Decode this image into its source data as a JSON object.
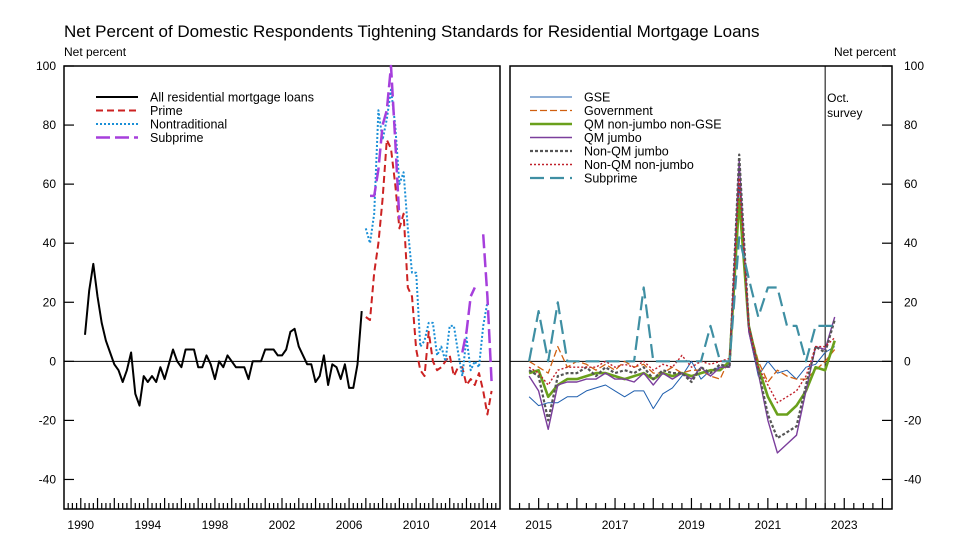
{
  "title": "Net Percent of Domestic Respondents Tightening Standards for Residential Mortgage Loans",
  "chart_data": [
    {
      "type": "line",
      "panel": "left",
      "ylabel": "Net percent",
      "ylim": [
        -50,
        100
      ],
      "y_ticks": [
        -40,
        -20,
        0,
        20,
        40,
        60,
        80,
        100
      ],
      "xlim": [
        1989.0,
        2015.0
      ],
      "x_ticks": [
        1990,
        1994,
        1998,
        2002,
        2006,
        2010,
        2014
      ],
      "zero_line": true,
      "legend": "top-left",
      "series": [
        {
          "name": "All residential mortgage loans",
          "color": "#000000",
          "dash": "",
          "width": 2,
          "x": [
            1990.25,
            1990.5,
            1990.75,
            1991,
            1991.25,
            1991.5,
            1991.75,
            1992,
            1992.25,
            1992.5,
            1992.75,
            1993,
            1993.25,
            1993.5,
            1993.75,
            1994,
            1994.25,
            1994.5,
            1994.75,
            1995,
            1995.25,
            1995.5,
            1995.75,
            1996,
            1996.25,
            1996.5,
            1996.75,
            1997,
            1997.25,
            1997.5,
            1997.75,
            1998,
            1998.25,
            1998.5,
            1998.75,
            1999,
            1999.25,
            1999.5,
            1999.75,
            2000,
            2000.25,
            2000.5,
            2000.75,
            2001,
            2001.25,
            2001.5,
            2001.75,
            2002,
            2002.25,
            2002.5,
            2002.75,
            2003,
            2003.25,
            2003.5,
            2003.75,
            2004,
            2004.25,
            2004.5,
            2004.75,
            2005,
            2005.25,
            2005.5,
            2005.75,
            2006,
            2006.25,
            2006.5,
            2006.75
          ],
          "y": [
            9,
            24,
            33,
            22,
            13,
            7,
            3,
            -1,
            -3,
            -7,
            -3,
            3,
            -11,
            -15,
            -5,
            -7,
            -5,
            -7,
            -2,
            -6,
            -1,
            4,
            0,
            -2,
            4,
            4,
            4,
            -2,
            -2,
            2,
            -1,
            -6,
            0,
            -2,
            2,
            0,
            -2,
            -2,
            -2,
            -6,
            0,
            0,
            0,
            4,
            4,
            4,
            2,
            2,
            4,
            10,
            11,
            5,
            2,
            -1,
            -1,
            -7,
            -5,
            2,
            -8,
            -1,
            -2,
            -6,
            -1,
            -9,
            -9,
            -1,
            17
          ]
        },
        {
          "name": "Prime",
          "color": "#cc2222",
          "dash": "7,4",
          "width": 2,
          "x": [
            2007,
            2007.25,
            2007.5,
            2007.75,
            2008,
            2008.25,
            2008.5,
            2008.75,
            2009,
            2009.25,
            2009.5,
            2009.75,
            2010,
            2010.25,
            2010.5,
            2010.75,
            2011,
            2011.25,
            2011.5,
            2011.75,
            2012,
            2012.25,
            2012.5,
            2012.75,
            2013,
            2013.25,
            2013.5,
            2013.75,
            2014,
            2014.25,
            2014.5
          ],
          "y": [
            15,
            14,
            30,
            40,
            55,
            75,
            72,
            60,
            45,
            50,
            25,
            22,
            4,
            -3,
            -5,
            10,
            0,
            -3,
            -2,
            0,
            2,
            -5,
            -2,
            -2,
            -8,
            -6,
            -8,
            -4,
            -10,
            -18,
            -10
          ]
        },
        {
          "name": "Nontraditional",
          "color": "#1a8fd6",
          "dash": "2,2",
          "width": 2,
          "x": [
            2007,
            2007.25,
            2007.5,
            2007.75,
            2008,
            2008.25,
            2008.5,
            2008.75,
            2009,
            2009.25,
            2009.5,
            2009.75,
            2010,
            2010.25,
            2010.5,
            2010.75,
            2011,
            2011.25,
            2011.5,
            2011.75,
            2012,
            2012.25,
            2012.5,
            2012.75,
            2013,
            2013.25,
            2013.5,
            2013.75,
            2014,
            2014.25
          ],
          "y": [
            45,
            40,
            50,
            85,
            75,
            82,
            92,
            80,
            60,
            64,
            45,
            30,
            30,
            5,
            7,
            13,
            13,
            2,
            5,
            0,
            12,
            12,
            3,
            -5,
            8,
            -3,
            0,
            -2,
            12,
            20
          ]
        },
        {
          "name": "Subprime",
          "color": "#a63fdc",
          "dash": "14,5",
          "width": 2.5,
          "x": [
            2007.25,
            2007.5,
            2007.75,
            2008,
            2008.25,
            2008.5,
            2008.75,
            2009,
            null,
            2012.75,
            2013,
            2013.25,
            2013.5,
            null,
            2014,
            2014.25,
            2014.5
          ],
          "y": [
            56,
            56,
            65,
            80,
            85,
            100,
            75,
            48,
            null,
            3,
            10,
            22,
            25,
            null,
            43,
            22,
            -7
          ]
        }
      ]
    },
    {
      "type": "line",
      "panel": "right",
      "ylabel": "Net percent",
      "ylim": [
        -50,
        100
      ],
      "y_ticks": [
        -40,
        -20,
        0,
        20,
        40,
        60,
        80,
        100
      ],
      "xlim": [
        2014.25,
        2024.25
      ],
      "x_ticks": [
        2015,
        2017,
        2019,
        2021,
        2023
      ],
      "zero_line": true,
      "legend": "top-left",
      "annotation": {
        "x": 2022.5,
        "text": [
          "Oct.",
          "survey"
        ]
      },
      "series": [
        {
          "name": "GSE",
          "color": "#1f5fae",
          "dash": "",
          "width": 1,
          "x": [
            2014.75,
            2015,
            2015.25,
            2015.5,
            2015.75,
            2016,
            2016.25,
            2016.5,
            2016.75,
            2017,
            2017.25,
            2017.5,
            2017.75,
            2018,
            2018.25,
            2018.5,
            2018.75,
            2019,
            2019.25,
            2019.5,
            2019.75,
            2020,
            2020.25,
            2020.5,
            2020.75,
            2021,
            2021.25,
            2021.5,
            2021.75,
            2022,
            2022.25,
            2022.5,
            2022.75
          ],
          "y": [
            -12,
            -15,
            -14,
            -14,
            -12,
            -12,
            -10,
            -9,
            -8,
            -10,
            -12,
            -10,
            -10,
            -16,
            -11,
            -9,
            -5,
            0,
            -6,
            -3,
            -2,
            -1,
            60,
            10,
            -5,
            0,
            -4,
            -3,
            -6,
            -2,
            -1,
            3,
            5
          ]
        },
        {
          "name": "Government",
          "color": "#d06010",
          "dash": "7,3",
          "width": 1.3,
          "x": [
            2014.75,
            2015,
            2015.25,
            2015.5,
            2015.75,
            2016,
            2016.25,
            2016.5,
            2016.75,
            2017,
            2017.25,
            2017.5,
            2017.75,
            2018,
            2018.25,
            2018.5,
            2018.75,
            2019,
            2019.25,
            2019.5,
            2019.75,
            2020,
            2020.25,
            2020.5,
            2020.75,
            2021,
            2021.25,
            2021.5,
            2021.75,
            2022,
            2022.25,
            2022.5,
            2022.75
          ],
          "y": [
            0,
            -2,
            -4,
            5,
            -2,
            0,
            -1,
            -3,
            -1,
            -3,
            0,
            -2,
            -1,
            -4,
            -4,
            -2,
            -4,
            -3,
            -3,
            -5,
            -6,
            1,
            52,
            12,
            0,
            -7,
            -3,
            -5,
            -6,
            -6,
            -3,
            0,
            4
          ]
        },
        {
          "name": "QM non-jumbo non-GSE",
          "color": "#6aa01c",
          "dash": "",
          "width": 2.6,
          "x": [
            2014.75,
            2015,
            2015.25,
            2015.5,
            2015.75,
            2016,
            2016.25,
            2016.5,
            2016.75,
            2017,
            2017.25,
            2017.5,
            2017.75,
            2018,
            2018.25,
            2018.5,
            2018.75,
            2019,
            2019.25,
            2019.5,
            2019.75,
            2020,
            2020.25,
            2020.5,
            2020.75,
            2021,
            2021.25,
            2021.5,
            2021.75,
            2022,
            2022.25,
            2022.5,
            2022.75
          ],
          "y": [
            -4,
            -3,
            -12,
            -8,
            -6,
            -6,
            -5,
            -4,
            -4,
            -5,
            -6,
            -5,
            -4,
            -6,
            -4,
            -5,
            -4,
            -5,
            -4,
            -3,
            -3,
            0,
            55,
            12,
            -2,
            -12,
            -18,
            -18,
            -15,
            -10,
            -2,
            -3,
            7
          ]
        },
        {
          "name": "QM jumbo",
          "color": "#7b3e9c",
          "dash": "",
          "width": 1.4,
          "x": [
            2014.75,
            2015,
            2015.25,
            2015.5,
            2015.75,
            2016,
            2016.25,
            2016.5,
            2016.75,
            2017,
            2017.25,
            2017.5,
            2017.75,
            2018,
            2018.25,
            2018.5,
            2018.75,
            2019,
            2019.25,
            2019.5,
            2019.75,
            2020,
            2020.25,
            2020.5,
            2020.75,
            2021,
            2021.25,
            2021.5,
            2021.75,
            2022,
            2022.25,
            2022.5,
            2022.75
          ],
          "y": [
            -5,
            -10,
            -23,
            -8,
            -7,
            -7,
            -6,
            -6,
            -4,
            -6,
            -6,
            -7,
            -4,
            -8,
            -4,
            -6,
            -4,
            -6,
            -2,
            -5,
            -2,
            -2,
            68,
            10,
            -4,
            -20,
            -31,
            -28,
            -25,
            -10,
            5,
            4,
            15
          ]
        },
        {
          "name": "Non-QM jumbo",
          "color": "#555555",
          "dash": "3,2",
          "width": 2.2,
          "x": [
            2014.75,
            2015,
            2015.25,
            2015.5,
            2015.75,
            2016,
            2016.25,
            2016.5,
            2016.75,
            2017,
            2017.25,
            2017.5,
            2017.75,
            2018,
            2018.25,
            2018.5,
            2018.75,
            2019,
            2019.25,
            2019.5,
            2019.75,
            2020,
            2020.25,
            2020.5,
            2020.75,
            2021,
            2021.25,
            2021.5,
            2021.75,
            2022,
            2022.25,
            2022.5,
            2022.75
          ],
          "y": [
            -3,
            -5,
            -20,
            -5,
            -4,
            -4,
            -2,
            -5,
            -2,
            -4,
            -3,
            -4,
            -2,
            -6,
            -3,
            -4,
            -4,
            -7,
            -2,
            -4,
            -1,
            -2,
            70,
            12,
            -3,
            -18,
            -26,
            -24,
            -22,
            -8,
            5,
            3,
            14
          ]
        },
        {
          "name": "Non-QM non-jumbo",
          "color": "#c0202a",
          "dash": "2,2",
          "width": 1.4,
          "x": [
            2014.75,
            2015,
            2015.25,
            2015.5,
            2015.75,
            2016,
            2016.25,
            2016.5,
            2016.75,
            2017,
            2017.25,
            2017.5,
            2017.75,
            2018,
            2018.25,
            2018.5,
            2018.75,
            2019,
            2019.25,
            2019.5,
            2019.75,
            2020,
            2020.25,
            2020.5,
            2020.75,
            2021,
            2021.25,
            2021.5,
            2021.75,
            2022,
            2022.25,
            2022.5,
            2022.75
          ],
          "y": [
            -2,
            -4,
            -8,
            -3,
            -2,
            -2,
            -2,
            -2,
            0,
            -2,
            -1,
            -2,
            0,
            -3,
            -1,
            -2,
            2,
            -2,
            0,
            -1,
            0,
            1,
            62,
            12,
            -2,
            -8,
            -14,
            -12,
            -10,
            -5,
            5,
            5,
            8
          ]
        },
        {
          "name": "Subprime",
          "color": "#3f8fa3",
          "dash": "14,6",
          "width": 2.2,
          "x": [
            2014.75,
            2015,
            2015.25,
            2015.5,
            2015.75,
            2016,
            2016.25,
            2016.5,
            2016.75,
            2017,
            2017.25,
            2017.5,
            2017.75,
            2018,
            2018.25,
            2018.5,
            2018.75,
            2019,
            2019.25,
            2019.5,
            2019.75,
            2020,
            2020.25,
            2020.5,
            2020.75,
            2021,
            2021.25,
            2021.5,
            2021.75,
            2022,
            2022.25,
            2022.5,
            2022.75
          ],
          "y": [
            0,
            17,
            0,
            20,
            0,
            0,
            0,
            0,
            0,
            0,
            0,
            0,
            25,
            0,
            0,
            0,
            0,
            0,
            0,
            12,
            0,
            0,
            42,
            28,
            15,
            25,
            25,
            12,
            12,
            0,
            12,
            12,
            12
          ]
        }
      ]
    }
  ]
}
